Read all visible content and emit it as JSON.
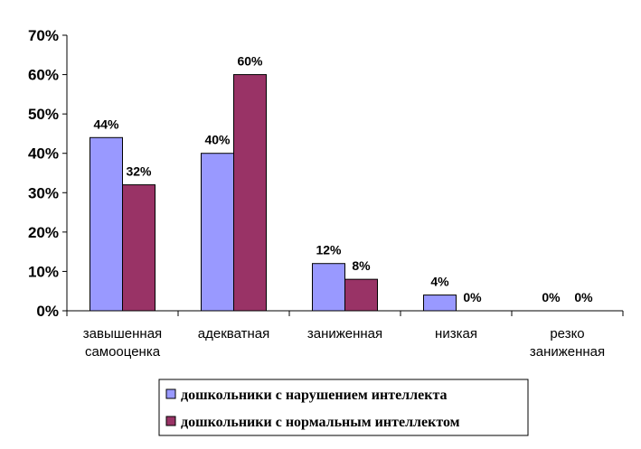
{
  "chart_data": {
    "type": "bar",
    "categories": [
      [
        "завышенная",
        "самооценка"
      ],
      [
        "адекватная"
      ],
      [
        "заниженная"
      ],
      [
        "низкая"
      ],
      [
        "резко",
        "заниженная"
      ]
    ],
    "series": [
      {
        "name": "дошкольники с нарушением интеллекта",
        "color": "#9999ff",
        "values": [
          44,
          40,
          12,
          4,
          0
        ],
        "labels": [
          "44%",
          "40%",
          "12%",
          "4%",
          "0%"
        ]
      },
      {
        "name": "дошкольники с нормальным интеллектом",
        "color": "#993366",
        "values": [
          32,
          60,
          8,
          0,
          0
        ],
        "labels": [
          "32%",
          "60%",
          "8%",
          "0%",
          "0%"
        ]
      }
    ],
    "ylim": [
      0,
      70
    ],
    "yticks": [
      "0%",
      "10%",
      "20%",
      "30%",
      "40%",
      "50%",
      "60%",
      "70%"
    ],
    "grid": false,
    "legend_position": "bottom-right",
    "title": "",
    "xlabel": "",
    "ylabel": ""
  }
}
